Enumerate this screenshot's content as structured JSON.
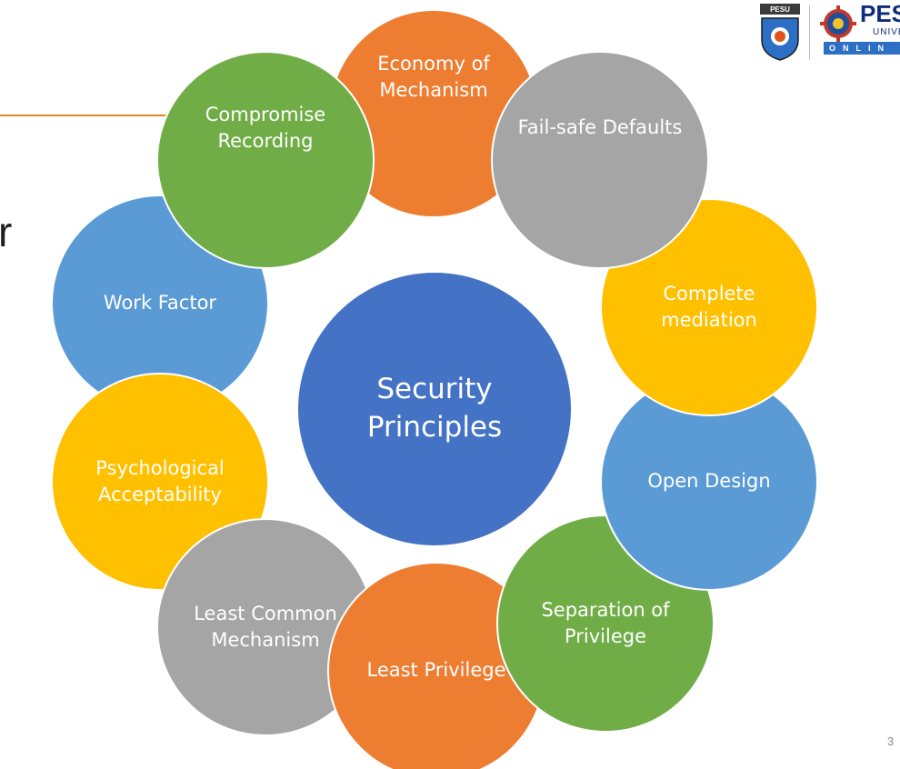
{
  "slide": {
    "partial_heading": "r",
    "slide_number": "3"
  },
  "logo": {
    "text": "PES",
    "subtext": "UNIVE",
    "band_text": "ONLIN",
    "emblem_text": "PESU"
  },
  "diagram": {
    "center": {
      "label_line1": "Security",
      "label_line2": "Principles"
    },
    "principles": [
      {
        "label": "Economy of Mechanism",
        "color": "#ed7d31"
      },
      {
        "label": "Fail-safe Defaults",
        "color": "#a5a5a5"
      },
      {
        "label": "Complete mediation",
        "color": "#ffc000"
      },
      {
        "label": "Open Design",
        "color": "#5b9bd5"
      },
      {
        "label": "Separation of Privilege",
        "color": "#70ad47"
      },
      {
        "label": "Least Privilege",
        "color": "#ed7d31"
      },
      {
        "label": "Least Common Mechanism",
        "color": "#a5a5a5"
      },
      {
        "label": "Psychological Acceptability",
        "color": "#ffc000"
      },
      {
        "label": "Work Factor",
        "color": "#5b9bd5"
      },
      {
        "label": "Compromise Recording",
        "color": "#70ad47"
      }
    ]
  }
}
